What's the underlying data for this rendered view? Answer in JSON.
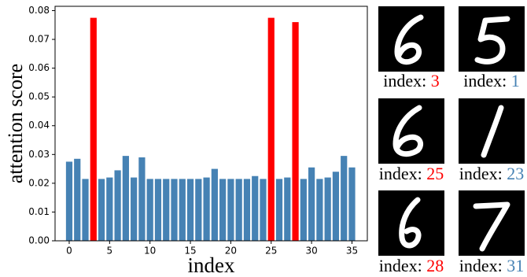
{
  "chart_data": {
    "type": "bar",
    "x_label": "index",
    "y_label": "attention score",
    "x": [
      0,
      1,
      2,
      3,
      4,
      5,
      6,
      7,
      8,
      9,
      10,
      11,
      12,
      13,
      14,
      15,
      16,
      17,
      18,
      19,
      20,
      21,
      22,
      23,
      24,
      25,
      26,
      27,
      28,
      29,
      30,
      31,
      32,
      33,
      34,
      35
    ],
    "values": [
      0.0275,
      0.0285,
      0.0215,
      0.0775,
      0.0215,
      0.022,
      0.0245,
      0.0295,
      0.022,
      0.029,
      0.0215,
      0.0215,
      0.0215,
      0.0215,
      0.0215,
      0.0215,
      0.0215,
      0.022,
      0.025,
      0.0215,
      0.0215,
      0.0215,
      0.0215,
      0.0225,
      0.0215,
      0.0775,
      0.0215,
      0.022,
      0.076,
      0.0215,
      0.0255,
      0.0215,
      0.022,
      0.024,
      0.0295,
      0.0255
    ],
    "colors": [
      "#4682b4",
      "#4682b4",
      "#4682b4",
      "#ff0000",
      "#4682b4",
      "#4682b4",
      "#4682b4",
      "#4682b4",
      "#4682b4",
      "#4682b4",
      "#4682b4",
      "#4682b4",
      "#4682b4",
      "#4682b4",
      "#4682b4",
      "#4682b4",
      "#4682b4",
      "#4682b4",
      "#4682b4",
      "#4682b4",
      "#4682b4",
      "#4682b4",
      "#4682b4",
      "#4682b4",
      "#4682b4",
      "#ff0000",
      "#4682b4",
      "#4682b4",
      "#ff0000",
      "#4682b4",
      "#4682b4",
      "#4682b4",
      "#4682b4",
      "#4682b4",
      "#4682b4",
      "#4682b4"
    ],
    "xlim": [
      -1.75,
      36.9
    ],
    "xticks": [
      0,
      5,
      10,
      15,
      20,
      25,
      30,
      35
    ],
    "ylim": [
      0,
      0.0815
    ],
    "yticks": [
      {
        "value": 0,
        "label": "0.00"
      },
      {
        "value": 0.01,
        "label": "0.01"
      },
      {
        "value": 0.02,
        "label": "0.02"
      },
      {
        "value": 0.03,
        "label": "0.03"
      },
      {
        "value": 0.04,
        "label": "0.04"
      },
      {
        "value": 0.05,
        "label": "0.05"
      },
      {
        "value": 0.06,
        "label": "0.06"
      },
      {
        "value": 0.07,
        "label": "0.07"
      },
      {
        "value": 0.08,
        "label": "0.08"
      }
    ]
  },
  "images": [
    {
      "label": "index:",
      "index": 3,
      "color": "#ff0000"
    },
    {
      "label": "index:",
      "index": 1,
      "color": "#4682b4"
    },
    {
      "label": "index:",
      "index": 25,
      "color": "#ff0000"
    },
    {
      "label": "index:",
      "index": 23,
      "color": "#4682b4"
    },
    {
      "label": "index:",
      "index": 28,
      "color": "#ff0000"
    },
    {
      "label": "index:",
      "index": 31,
      "color": "#4682b4"
    }
  ]
}
